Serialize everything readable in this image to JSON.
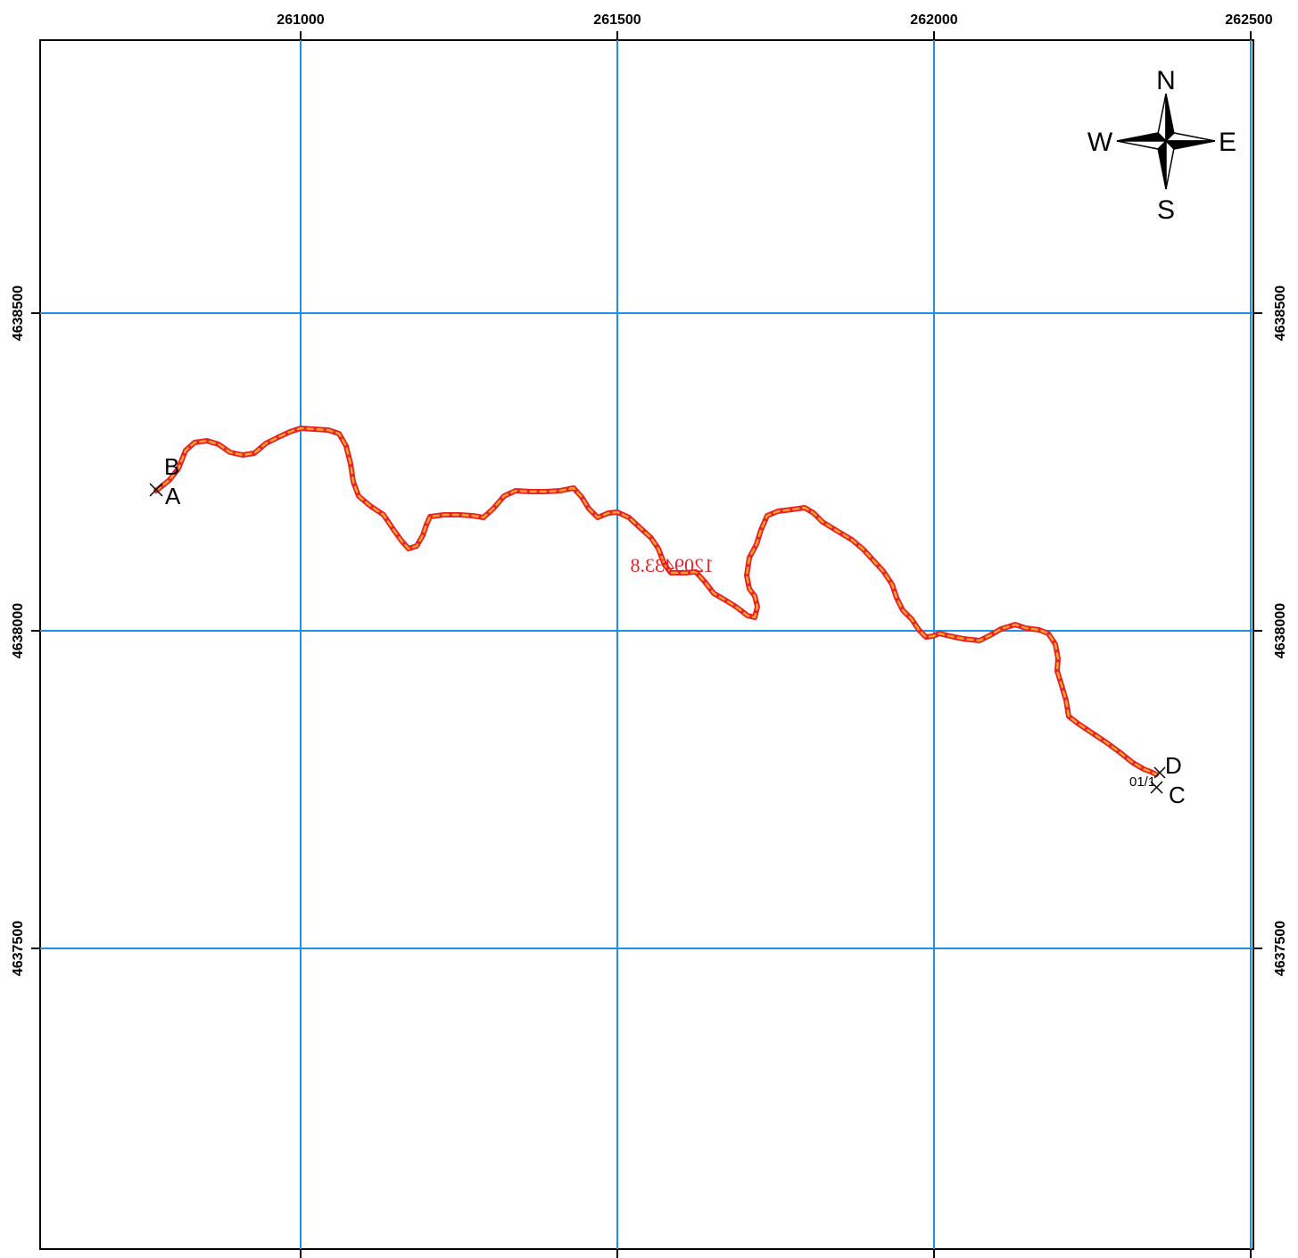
{
  "map": {
    "grid_x": [
      "261000",
      "261500",
      "262000",
      "262500"
    ],
    "grid_y": [
      "4638500",
      "4638000",
      "4637500"
    ],
    "grid_color": "#1e90e8",
    "route_color_outer": "#e8202a",
    "route_color_inner": "#f5a623",
    "route_label": "1209433.8",
    "route_label_color": "#e8202a",
    "points": {
      "A": "A",
      "B": "B",
      "C": "C",
      "D": "D"
    },
    "small_label": "01/1",
    "compass": {
      "N": "N",
      "S": "S",
      "E": "E",
      "W": "W"
    }
  }
}
